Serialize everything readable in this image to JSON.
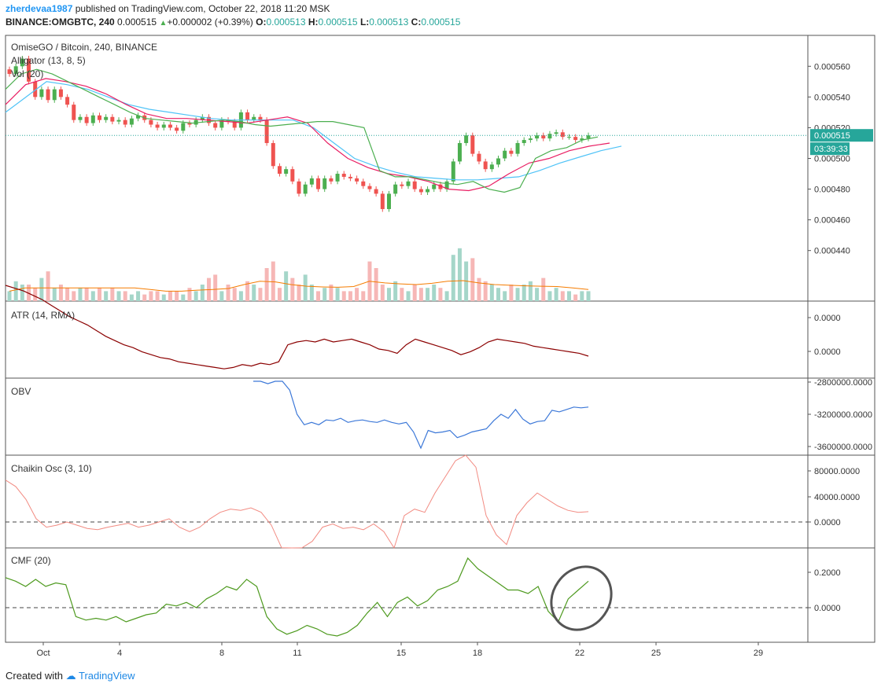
{
  "header": {
    "username": "zherdevaa1987",
    "published_text": "published on TradingView.com, October 22, 2018 11:20 MSK",
    "symbol": "BINANCE:OMGBTC, 240",
    "last": "0.000515",
    "change": "+0.000002 (+0.39%)",
    "o_label": "O:",
    "o": "0.000513",
    "h_label": "H:",
    "h": "0.000515",
    "l_label": "L:",
    "l": "0.000513",
    "c_label": "C:",
    "c": "0.000515"
  },
  "chart_title": "OmiseGO / Bitcoin, 240, BINANCE",
  "indicator_labels": {
    "alligator": "Alligator (13, 8, 5)",
    "vol": "Vol (20)",
    "atr": "ATR (14, RMA)",
    "obv": "OBV",
    "chaikin": "Chaikin Osc (3, 10)",
    "cmf": "CMF (20)"
  },
  "price_badge": "0.000515",
  "timer_badge": "03:39:33",
  "footer": {
    "created_with": "Created with",
    "brand": "TradingView"
  },
  "colors": {
    "bull": "#26a69a",
    "bear": "#ef5350",
    "lips": "#4caf50",
    "teeth": "#e91e63",
    "jaw": "#4fc3f7",
    "obv": "#3c78d8",
    "chaikin": "#ef5350",
    "cmf": "#4caf50",
    "atr": "#8b0000",
    "volma": "#f57c00"
  },
  "chart_data": [
    {
      "type": "candlestick",
      "title": "OmiseGO / Bitcoin, 240, BINANCE",
      "x_ticks": [
        "Oct",
        "4",
        "8",
        "11",
        "15",
        "18",
        "22",
        "25",
        "29"
      ],
      "y_ticks": [
        "0.000560",
        "0.000540",
        "0.000520",
        "0.000500",
        "0.000480",
        "0.000460",
        "0.000440"
      ],
      "ylim": [
        0.000425,
        0.000575
      ],
      "closes": [
        0.000555,
        0.00056,
        0.000565,
        0.00055,
        0.00054,
        0.000545,
        0.000538,
        0.000545,
        0.00054,
        0.000535,
        0.000525,
        0.000527,
        0.000523,
        0.000528,
        0.000525,
        0.000527,
        0.000524,
        0.000525,
        0.000522,
        0.000526,
        0.000528,
        0.000525,
        0.000522,
        0.00052,
        0.000522,
        0.00052,
        0.000518,
        0.000523,
        0.000522,
        0.000525,
        0.000527,
        0.000523,
        0.00052,
        0.000525,
        0.000524,
        0.00052,
        0.00053,
        0.000525,
        0.000527,
        0.000525,
        0.00051,
        0.000495,
        0.00049,
        0.000493,
        0.000485,
        0.000477,
        0.000483,
        0.000487,
        0.00048,
        0.000487,
        0.000485,
        0.00049,
        0.000488,
        0.000487,
        0.000485,
        0.000482,
        0.00048,
        0.000477,
        0.000467,
        0.000477,
        0.000483,
        0.000482,
        0.000485,
        0.00048,
        0.000478,
        0.00048,
        0.000483,
        0.00048,
        0.000485,
        0.000498,
        0.00051,
        0.000515,
        0.000503,
        0.000498,
        0.000493,
        0.000496,
        0.0005,
        0.000505,
        0.000503,
        0.00051,
        0.000512,
        0.000513,
        0.000515,
        0.000513,
        0.000516,
        0.000517,
        0.000514,
        0.000514,
        0.000512,
        0.000513,
        0.000515
      ],
      "alligator_lips": [
        0.000545,
        0.000555,
        0.000558,
        0.000555,
        0.00055,
        0.000545,
        0.00054,
        0.000535,
        0.00053,
        0.000526,
        0.000525,
        0.000524,
        0.000523,
        0.000524,
        0.000525,
        0.000524,
        0.000522,
        0.000521,
        0.000522,
        0.000523,
        0.000524,
        0.000524,
        0.000522,
        0.00052,
        0.000492,
        0.000488,
        0.000488,
        0.000486,
        0.000484,
        0.000483,
        0.000485,
        0.00048,
        0.000478,
        0.000481,
        0.0005,
        0.000505,
        0.000507,
        0.000512,
        0.000514
      ],
      "alligator_teeth": [
        0.000535,
        0.000548,
        0.000552,
        0.00055,
        0.000547,
        0.000542,
        0.000535,
        0.000529,
        0.000526,
        0.000526,
        0.000525,
        0.000524,
        0.000523,
        0.000525,
        0.000527,
        0.000523,
        0.00051,
        0.0005,
        0.000494,
        0.00049,
        0.000488,
        0.000485,
        0.00048,
        0.000479,
        0.000482,
        0.00049,
        0.000497,
        0.0005,
        0.000505,
        0.000508,
        0.00051
      ],
      "alligator_jaw": [
        0.00053,
        0.00054,
        0.00055,
        0.000548,
        0.000545,
        0.00054,
        0.000535,
        0.000532,
        0.00053,
        0.000528,
        0.000526,
        0.000525,
        0.000525,
        0.000525,
        0.000525,
        0.00052,
        0.00051,
        0.0005,
        0.000495,
        0.000491,
        0.000488,
        0.000487,
        0.000486,
        0.000486,
        0.000487,
        0.000488,
        0.000492,
        0.000497,
        0.000501,
        0.000505,
        0.000508
      ],
      "volume": [
        3,
        6,
        5,
        5,
        4,
        7,
        9,
        4,
        5,
        4,
        3,
        4,
        4,
        3,
        4,
        3,
        4,
        3,
        3,
        2,
        3,
        2,
        3,
        3,
        2,
        3,
        3,
        2,
        4,
        3,
        5,
        7,
        8,
        3,
        5,
        4,
        3,
        6,
        5,
        4,
        10,
        12,
        4,
        9,
        7,
        5,
        8,
        5,
        3,
        4,
        5,
        4,
        3,
        3,
        4,
        3,
        12,
        10,
        5,
        4,
        6,
        4,
        3,
        5,
        4,
        4,
        5,
        4,
        3,
        14,
        16,
        12,
        13,
        7,
        6,
        5,
        4,
        3,
        5,
        4,
        5,
        6,
        4,
        7,
        3,
        4,
        3,
        3,
        2,
        3,
        3
      ],
      "vol_ma": [
        3,
        4,
        4,
        4,
        4,
        4,
        4,
        4,
        4,
        3.5,
        3,
        3,
        3.3,
        3.5,
        3.8,
        5,
        6,
        5.8,
        5,
        4.5,
        4.3,
        4.2,
        4.4,
        6,
        5.5,
        5.2,
        5,
        5.4,
        6,
        6.2,
        5.5,
        5,
        4.8,
        4.6,
        4.5,
        4.4,
        4,
        3.5
      ]
    },
    {
      "type": "line",
      "title": "ATR (14, RMA)",
      "y_ticks": [
        "0.0000",
        "0.0000"
      ],
      "values": [
        1.0,
        0.98,
        0.96,
        0.93,
        0.9,
        0.86,
        0.82,
        0.78,
        0.75,
        0.72,
        0.68,
        0.64,
        0.61,
        0.58,
        0.56,
        0.53,
        0.51,
        0.49,
        0.48,
        0.46,
        0.45,
        0.44,
        0.43,
        0.42,
        0.41,
        0.42,
        0.44,
        0.43,
        0.45,
        0.44,
        0.46,
        0.58,
        0.6,
        0.61,
        0.6,
        0.62,
        0.6,
        0.61,
        0.62,
        0.6,
        0.58,
        0.55,
        0.54,
        0.52,
        0.58,
        0.62,
        0.6,
        0.58,
        0.56,
        0.54,
        0.51,
        0.53,
        0.56,
        0.6,
        0.62,
        0.61,
        0.6,
        0.59,
        0.57,
        0.56,
        0.55,
        0.54,
        0.53,
        0.52,
        0.5
      ]
    },
    {
      "type": "line",
      "title": "OBV",
      "y_ticks": [
        "-2800000.0000",
        "-3200000.0000",
        "-3600000.0000"
      ],
      "values": [
        -2790000,
        -2790000,
        -2820000,
        -2790000,
        -2790000,
        -2900000,
        -3200000,
        -3330000,
        -3300000,
        -3330000,
        -3270000,
        -3280000,
        -3250000,
        -3300000,
        -3280000,
        -3270000,
        -3290000,
        -3300000,
        -3270000,
        -3300000,
        -3320000,
        -3300000,
        -3420000,
        -3620000,
        -3400000,
        -3430000,
        -3420000,
        -3400000,
        -3490000,
        -3460000,
        -3420000,
        -3400000,
        -3380000,
        -3280000,
        -3200000,
        -3250000,
        -3140000,
        -3260000,
        -3320000,
        -3290000,
        -3280000,
        -3150000,
        -3170000,
        -3140000,
        -3110000,
        -3120000,
        -3110000
      ]
    },
    {
      "type": "line",
      "title": "Chaikin Osc (3, 10)",
      "y_ticks": [
        "80000.0000",
        "40000.0000",
        "0.0000"
      ],
      "values": [
        65000,
        55000,
        35000,
        5000,
        -8000,
        -5000,
        0,
        -5000,
        -10000,
        -12000,
        -8000,
        -5000,
        -2000,
        -8000,
        -5000,
        0,
        5000,
        -8000,
        -15000,
        -8000,
        5000,
        15000,
        20000,
        18000,
        22000,
        15000,
        -5000,
        -40000,
        -60000,
        -40000,
        -30000,
        -8000,
        -3000,
        -10000,
        -8000,
        -12000,
        -3000,
        -15000,
        -45000,
        10000,
        20000,
        15000,
        45000,
        70000,
        95000,
        120000,
        85000,
        10000,
        -20000,
        -35000,
        10000,
        30000,
        45000,
        35000,
        25000,
        18000,
        15000,
        16000
      ]
    },
    {
      "type": "line",
      "title": "CMF (20)",
      "y_ticks": [
        "0.2000",
        "0.0000"
      ],
      "values": [
        0.17,
        0.15,
        0.12,
        0.16,
        0.12,
        0.14,
        0.13,
        -0.05,
        -0.07,
        -0.06,
        -0.07,
        -0.05,
        -0.08,
        -0.06,
        -0.04,
        -0.03,
        0.02,
        0.01,
        0.03,
        0.0,
        0.05,
        0.08,
        0.12,
        0.1,
        0.16,
        0.12,
        -0.05,
        -0.12,
        -0.15,
        -0.13,
        -0.1,
        -0.12,
        -0.15,
        -0.16,
        -0.14,
        -0.1,
        -0.03,
        0.03,
        -0.05,
        0.03,
        0.06,
        0.01,
        0.04,
        0.1,
        0.12,
        0.15,
        0.28,
        0.22,
        0.18,
        0.14,
        0.1,
        0.1,
        0.08,
        0.12,
        -0.02,
        -0.08,
        0.05,
        0.1,
        0.15
      ]
    }
  ]
}
